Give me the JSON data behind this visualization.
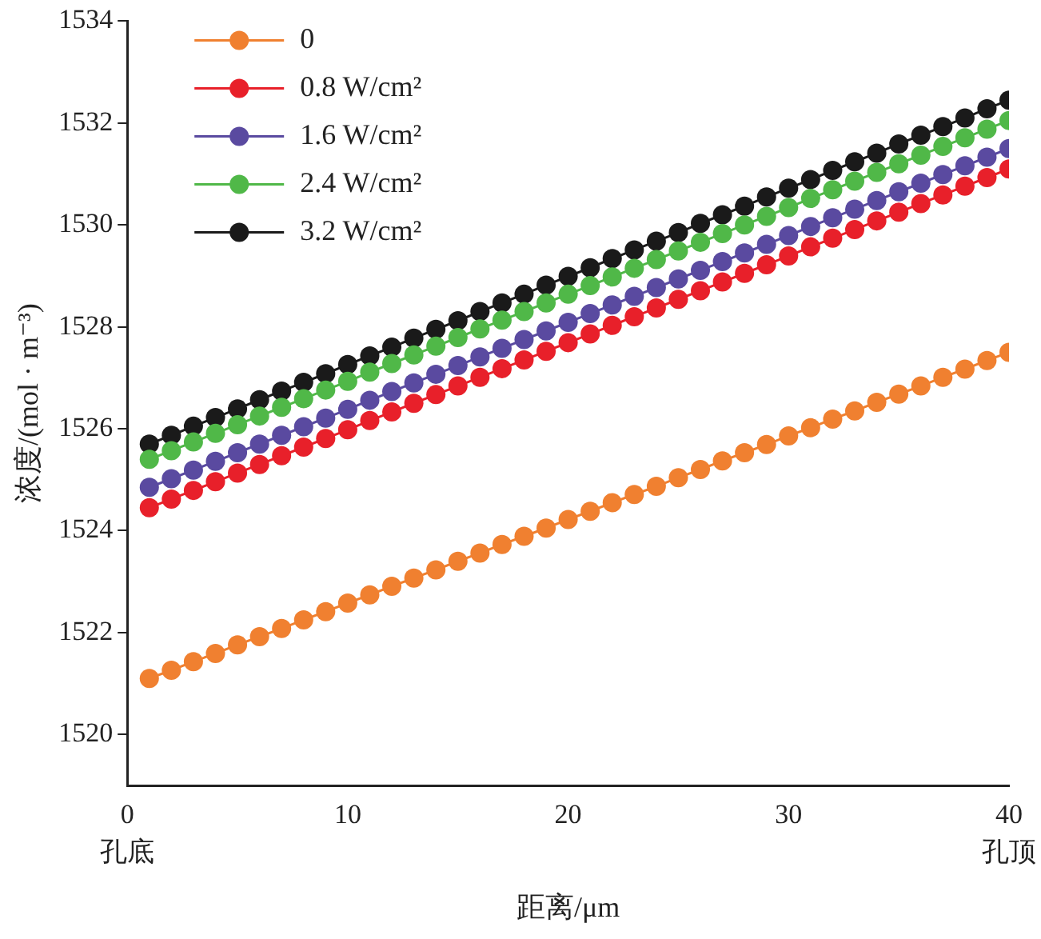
{
  "chart_data": {
    "type": "line",
    "xlabel": "距离/μm",
    "ylabel": "浓度/(mol · m⁻³)",
    "x": [
      1,
      2,
      3,
      4,
      5,
      6,
      7,
      8,
      9,
      10,
      11,
      12,
      13,
      14,
      15,
      16,
      17,
      18,
      19,
      20,
      21,
      22,
      23,
      24,
      25,
      26,
      27,
      28,
      29,
      30,
      31,
      32,
      33,
      34,
      35,
      36,
      37,
      38,
      39,
      40
    ],
    "series": [
      {
        "name": "0",
        "color": "#f08030",
        "values": [
          1521.1,
          1521.26,
          1521.43,
          1521.59,
          1521.76,
          1521.92,
          1522.08,
          1522.25,
          1522.41,
          1522.58,
          1522.74,
          1522.91,
          1523.07,
          1523.23,
          1523.4,
          1523.56,
          1523.73,
          1523.89,
          1524.05,
          1524.22,
          1524.38,
          1524.55,
          1524.71,
          1524.87,
          1525.04,
          1525.2,
          1525.37,
          1525.53,
          1525.69,
          1525.86,
          1526.02,
          1526.19,
          1526.35,
          1526.52,
          1526.68,
          1526.84,
          1527.01,
          1527.17,
          1527.34,
          1527.5
        ]
      },
      {
        "name": "0.8 W/cm²",
        "color": "#e8202a",
        "values": [
          1524.45,
          1524.62,
          1524.79,
          1524.96,
          1525.13,
          1525.3,
          1525.47,
          1525.64,
          1525.81,
          1525.98,
          1526.16,
          1526.33,
          1526.5,
          1526.67,
          1526.84,
          1527.01,
          1527.18,
          1527.35,
          1527.52,
          1527.69,
          1527.86,
          1528.03,
          1528.2,
          1528.37,
          1528.54,
          1528.71,
          1528.88,
          1529.05,
          1529.22,
          1529.39,
          1529.57,
          1529.74,
          1529.91,
          1530.08,
          1530.25,
          1530.42,
          1530.59,
          1530.76,
          1530.93,
          1531.1
        ]
      },
      {
        "name": "1.6 W/cm²",
        "color": "#5a4aa0",
        "values": [
          1524.85,
          1525.02,
          1525.19,
          1525.36,
          1525.53,
          1525.7,
          1525.87,
          1526.04,
          1526.21,
          1526.38,
          1526.56,
          1526.73,
          1526.9,
          1527.07,
          1527.24,
          1527.41,
          1527.58,
          1527.75,
          1527.92,
          1528.09,
          1528.26,
          1528.43,
          1528.6,
          1528.77,
          1528.94,
          1529.11,
          1529.28,
          1529.45,
          1529.62,
          1529.79,
          1529.97,
          1530.14,
          1530.31,
          1530.48,
          1530.65,
          1530.82,
          1530.99,
          1531.16,
          1531.33,
          1531.5
        ]
      },
      {
        "name": "2.4 W/cm²",
        "color": "#50b848",
        "values": [
          1525.4,
          1525.57,
          1525.74,
          1525.91,
          1526.08,
          1526.25,
          1526.42,
          1526.59,
          1526.76,
          1526.93,
          1527.11,
          1527.28,
          1527.45,
          1527.62,
          1527.79,
          1527.96,
          1528.13,
          1528.3,
          1528.47,
          1528.64,
          1528.81,
          1528.98,
          1529.15,
          1529.32,
          1529.49,
          1529.66,
          1529.83,
          1530.0,
          1530.17,
          1530.34,
          1530.52,
          1530.69,
          1530.86,
          1531.03,
          1531.2,
          1531.37,
          1531.54,
          1531.71,
          1531.88,
          1532.05
        ]
      },
      {
        "name": "3.2 W/cm²",
        "color": "#1a1a1a",
        "values": [
          1525.7,
          1525.87,
          1526.05,
          1526.22,
          1526.39,
          1526.57,
          1526.74,
          1526.91,
          1527.08,
          1527.26,
          1527.43,
          1527.6,
          1527.78,
          1527.95,
          1528.12,
          1528.3,
          1528.47,
          1528.64,
          1528.82,
          1528.99,
          1529.16,
          1529.34,
          1529.51,
          1529.68,
          1529.85,
          1530.03,
          1530.2,
          1530.37,
          1530.55,
          1530.72,
          1530.89,
          1531.07,
          1531.24,
          1531.41,
          1531.59,
          1531.76,
          1531.93,
          1532.1,
          1532.28,
          1532.45
        ]
      }
    ],
    "xlim": [
      0,
      40
    ],
    "xticks": [
      0,
      10,
      20,
      30,
      40
    ],
    "ylim": [
      1519,
      1534
    ],
    "yticks": [
      1520,
      1522,
      1524,
      1526,
      1528,
      1530,
      1532,
      1534
    ],
    "annotations": [
      "孔底",
      "孔顶"
    ],
    "grid": false,
    "legend": "top left",
    "marker": "circle",
    "line_style": "solid"
  }
}
